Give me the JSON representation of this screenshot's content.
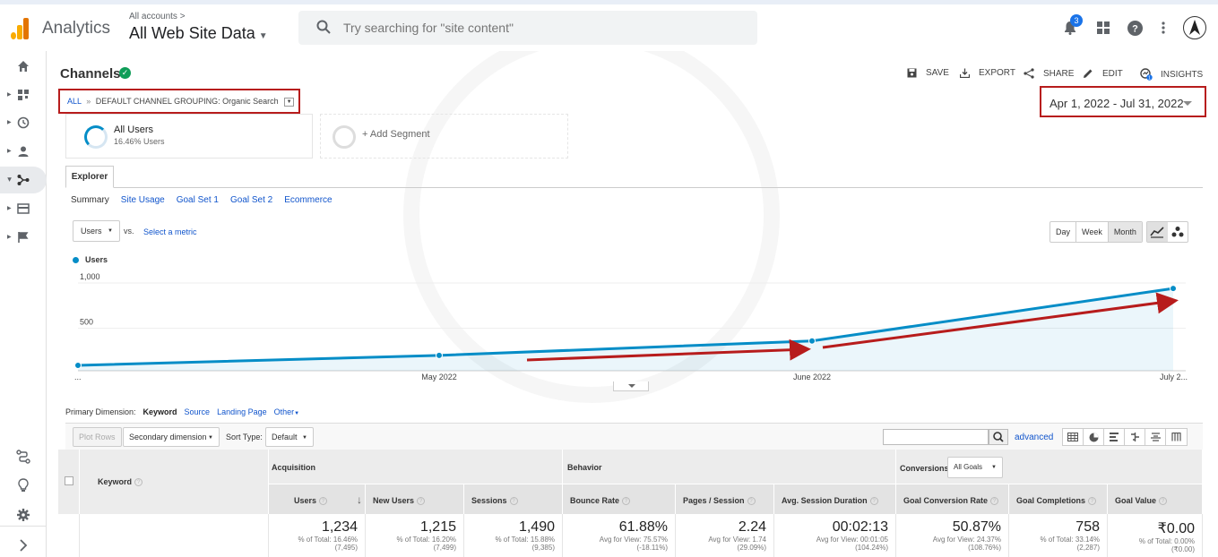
{
  "app": {
    "name": "Analytics",
    "account_crumb": "All accounts >",
    "property": "All Web Site Data"
  },
  "search": {
    "placeholder": "Try searching for \"site content\""
  },
  "notifications": {
    "count": "3"
  },
  "report": {
    "title": "Channels",
    "actions": {
      "save": "SAVE",
      "export": "EXPORT",
      "share": "SHARE",
      "edit": "EDIT",
      "insights": "INSIGHTS"
    },
    "breadcrumb": {
      "all": "ALL",
      "sep": "»",
      "grouping": "DEFAULT CHANNEL GROUPING: Organic Search"
    },
    "date_range": "Apr 1, 2022 - Jul 31, 2022"
  },
  "segments": {
    "active": {
      "name": "All Users",
      "sub": "16.46% Users"
    },
    "add": "+ Add Segment"
  },
  "explorer": {
    "tab": "Explorer",
    "subtabs": [
      "Summary",
      "Site Usage",
      "Goal Set 1",
      "Goal Set 2",
      "Ecommerce"
    ],
    "metric": "Users",
    "vs": "vs.",
    "select_metric": "Select a metric",
    "granularity": [
      "Day",
      "Week",
      "Month"
    ],
    "legend": "Users"
  },
  "chart_data": {
    "type": "line",
    "series": [
      {
        "name": "Users",
        "values": [
          30,
          140,
          300,
          880
        ]
      }
    ],
    "x": [
      "...",
      "May 2022",
      "June 2022",
      "July 2..."
    ],
    "ylim": [
      0,
      1000
    ],
    "yticks": [
      "1,000",
      "500"
    ],
    "grid": true,
    "area_fill": true,
    "color": "#058dc7"
  },
  "primary_dimension": {
    "label": "Primary Dimension:",
    "current": "Keyword",
    "options": [
      "Source",
      "Landing Page"
    ],
    "other": "Other"
  },
  "table_controls": {
    "plot_rows": "Plot Rows",
    "secondary": "Secondary dimension",
    "sort_type_label": "Sort Type:",
    "sort_type": "Default",
    "advanced": "advanced"
  },
  "table": {
    "first_col": "Keyword",
    "groups": {
      "acquisition": "Acquisition",
      "behavior": "Behavior",
      "conversions": "Conversions",
      "goals_select": "All Goals"
    },
    "columns": [
      {
        "label": "Users",
        "value": "1,234",
        "sub1": "% of Total: 16.46%",
        "sub2": "(7,495)"
      },
      {
        "label": "New Users",
        "value": "1,215",
        "sub1": "% of Total: 16.20%",
        "sub2": "(7,499)"
      },
      {
        "label": "Sessions",
        "value": "1,490",
        "sub1": "% of Total: 15.88%",
        "sub2": "(9,385)"
      },
      {
        "label": "Bounce Rate",
        "value": "61.88%",
        "sub1": "Avg for View: 75.57%",
        "sub2": "(-18.11%)"
      },
      {
        "label": "Pages / Session",
        "value": "2.24",
        "sub1": "Avg for View: 1.74",
        "sub2": "(29.09%)"
      },
      {
        "label": "Avg. Session Duration",
        "value": "00:02:13",
        "sub1": "Avg for View: 00:01:05",
        "sub2": "(104.24%)"
      },
      {
        "label": "Goal Conversion Rate",
        "value": "50.87%",
        "sub1": "Avg for View: 24.37%",
        "sub2": "(108.76%)"
      },
      {
        "label": "Goal Completions",
        "value": "758",
        "sub1": "% of Total: 33.14%",
        "sub2": "(2,287)"
      },
      {
        "label": "Goal Value",
        "value": "₹0.00",
        "sub1": "% of Total: 0.00%",
        "sub2": "(₹0.00)"
      }
    ]
  },
  "colors": {
    "accent": "#058dc7",
    "annotation": "#b71c1c",
    "link": "#1155cc",
    "logo": "#f9ab00"
  }
}
